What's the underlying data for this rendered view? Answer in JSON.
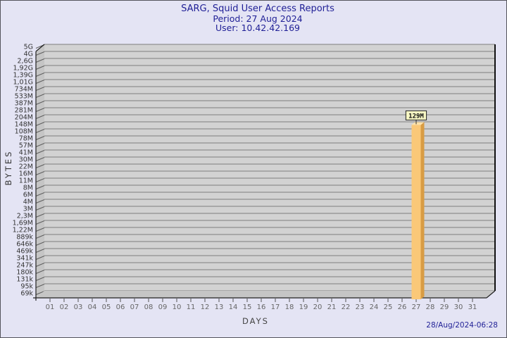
{
  "header": {
    "title": "SARG, Squid User Access Reports",
    "period": "Period: 27 Aug 2024",
    "user": "User: 10.42.42.169"
  },
  "footer": {
    "generated": "28/Aug/2024-06:28"
  },
  "chart_data": {
    "type": "bar",
    "title": "SARG, Squid User Access Reports",
    "subtitle": [
      "Period: 27 Aug 2024",
      "User: 10.42.42.169"
    ],
    "xlabel": "DAYS",
    "ylabel": "BYTES",
    "x_ticks": [
      "01",
      "02",
      "03",
      "04",
      "05",
      "06",
      "07",
      "08",
      "09",
      "10",
      "11",
      "12",
      "13",
      "14",
      "15",
      "16",
      "17",
      "18",
      "19",
      "20",
      "21",
      "22",
      "23",
      "24",
      "25",
      "26",
      "27",
      "28",
      "29",
      "30",
      "31"
    ],
    "y_ticks": [
      "5G",
      "4G",
      "2,6G",
      "1,92G",
      "1,39G",
      "1,01G",
      "734M",
      "533M",
      "387M",
      "281M",
      "204M",
      "148M",
      "108M",
      "78M",
      "57M",
      "41M",
      "30M",
      "22M",
      "16M",
      "11M",
      "8M",
      "6M",
      "4M",
      "3M",
      "2,3M",
      "1,69M",
      "1,22M",
      "889k",
      "646k",
      "469k",
      "341k",
      "247k",
      "180k",
      "131k",
      "95k",
      "69k"
    ],
    "y_axis": {
      "scale": "log",
      "max_bytes": 5000000000,
      "min_bytes": 69000
    },
    "grid": true,
    "legend": "none",
    "bars": [
      {
        "day": "27",
        "label": "129M",
        "bytes": 129000000
      }
    ],
    "colors": {
      "page_bg": "#E4E4F4",
      "title_color": "#1F1F96",
      "plot_bg": "#D2D2D2",
      "wall": "#C5C5C5",
      "grid": "#7D7D7D",
      "frame": "#222222",
      "bar_front": "#FAC878",
      "bar_side": "#D89C44",
      "bar_top": "#FFE2A8",
      "bar_label_bg": "#F6F6C3",
      "bar_label_border": "#222222",
      "y_label_color": "#333333",
      "day_label_color": "#666666"
    }
  }
}
